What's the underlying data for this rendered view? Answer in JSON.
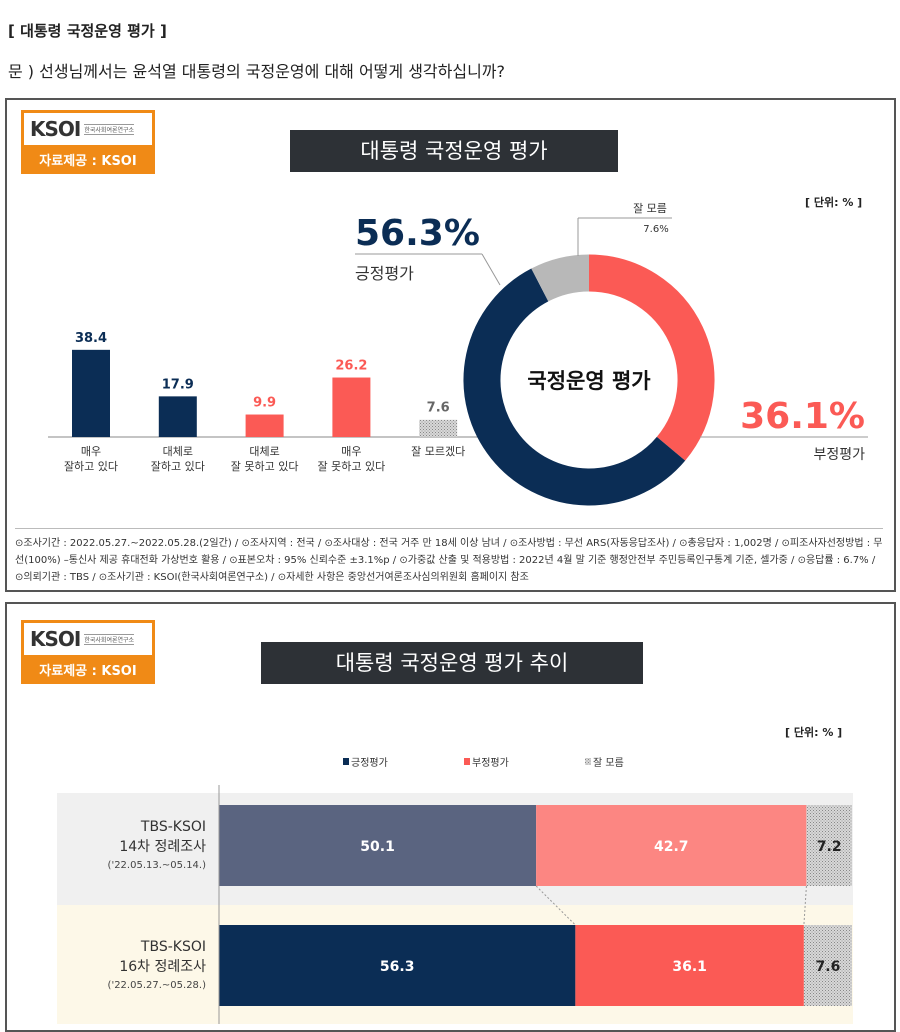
{
  "header": {
    "section": "[ 대통령 국정운영 평가 ]",
    "question": "문 )   선생님께서는 윤석열 대통령의 국정운영에 대해 어떻게 생각하십니까?"
  },
  "logo": {
    "mark": "KSOI",
    "org": "한국사회여론연구소",
    "source": "자료제공 : KSOI"
  },
  "panel1": {
    "title": "대통령 국정운영 평가",
    "unit": "[ 단위: % ]",
    "notes": "⊙조사기간 : 2022.05.27.~2022.05.28.(2일간)  / ⊙조사지역 : 전국 / ⊙조사대상 : 전국 거주 만 18세 이상 남녀 / ⊙조사방법 : 무선 ARS(자동응답조사) / ⊙총응답자 : 1,002명 / ⊙피조사자선정방법 : 무선(100%) –통신사 제공 휴대전화 가상번호 활용 / ⊙표본오차 : 95% 신뢰수준 ±3.1%p / ⊙가중값 산출 및 적용방법 : 2022년 4월 말 기준 행정안전부 주민등록인구통계 기준, 셀가중 / ⊙응답률 : 6.7% / ⊙의뢰기관 : TBS / ⊙조사기관 : KSOI(한국사회여론연구소) / ⊙자세한 사항은 중앙선거여론조사심의위원회 홈페이지 참조"
  },
  "panel2": {
    "title": "대통령 국정운영 평가 추이",
    "unit": "[ 단위: % ]"
  },
  "colors": {
    "navy": "#0b2d55",
    "red": "#fb5a55",
    "gray": "#b8b8b8",
    "navy_old": "#5a6480",
    "red_old": "#fc8682"
  },
  "chart_data": [
    {
      "type": "bar",
      "categories": [
        "매우\n잘하고 있다",
        "대체로\n잘하고 있다",
        "대체로\n잘 못하고 있다",
        "매우\n잘 못하고 있다",
        "잘 모르겠다"
      ],
      "values": [
        38.4,
        17.9,
        9.9,
        26.2,
        7.6
      ],
      "value_labels": [
        "38.4",
        "17.9",
        "9.9",
        "26.2",
        "7.6"
      ],
      "colors": [
        "#0b2d55",
        "#0b2d55",
        "#fb5a55",
        "#fb5a55",
        "#b8b8b8"
      ]
    },
    {
      "type": "pie",
      "center_label": "국정운영 평가",
      "slices": [
        {
          "name": "부정평가",
          "value": 36.1,
          "label": "36.1%",
          "color": "#fb5a55"
        },
        {
          "name": "긍정평가",
          "value": 56.3,
          "label": "56.3%",
          "color": "#0b2d55"
        },
        {
          "name": "잘 모름",
          "value": 7.6,
          "label": "7.6%",
          "color": "#b8b8b8"
        }
      ]
    },
    {
      "type": "bar",
      "orientation": "horizontal-stacked",
      "legend": [
        "긍정평가",
        "부정평가",
        "잘 모름"
      ],
      "legend_position": "top",
      "rows": [
        {
          "label1": "TBS-KSOI",
          "label2": "14차 정례조사",
          "label3": "('22.05.13.~05.14.)",
          "values": [
            50.1,
            42.7,
            7.2
          ],
          "labels": [
            "50.1",
            "42.7",
            "7.2"
          ]
        },
        {
          "label1": "TBS-KSOI",
          "label2": "16차 정례조사",
          "label3": "('22.05.27.~05.28.)",
          "values": [
            56.3,
            36.1,
            7.6
          ],
          "labels": [
            "56.3",
            "36.1",
            "7.6"
          ]
        }
      ],
      "xlim": [
        0,
        100
      ]
    }
  ]
}
